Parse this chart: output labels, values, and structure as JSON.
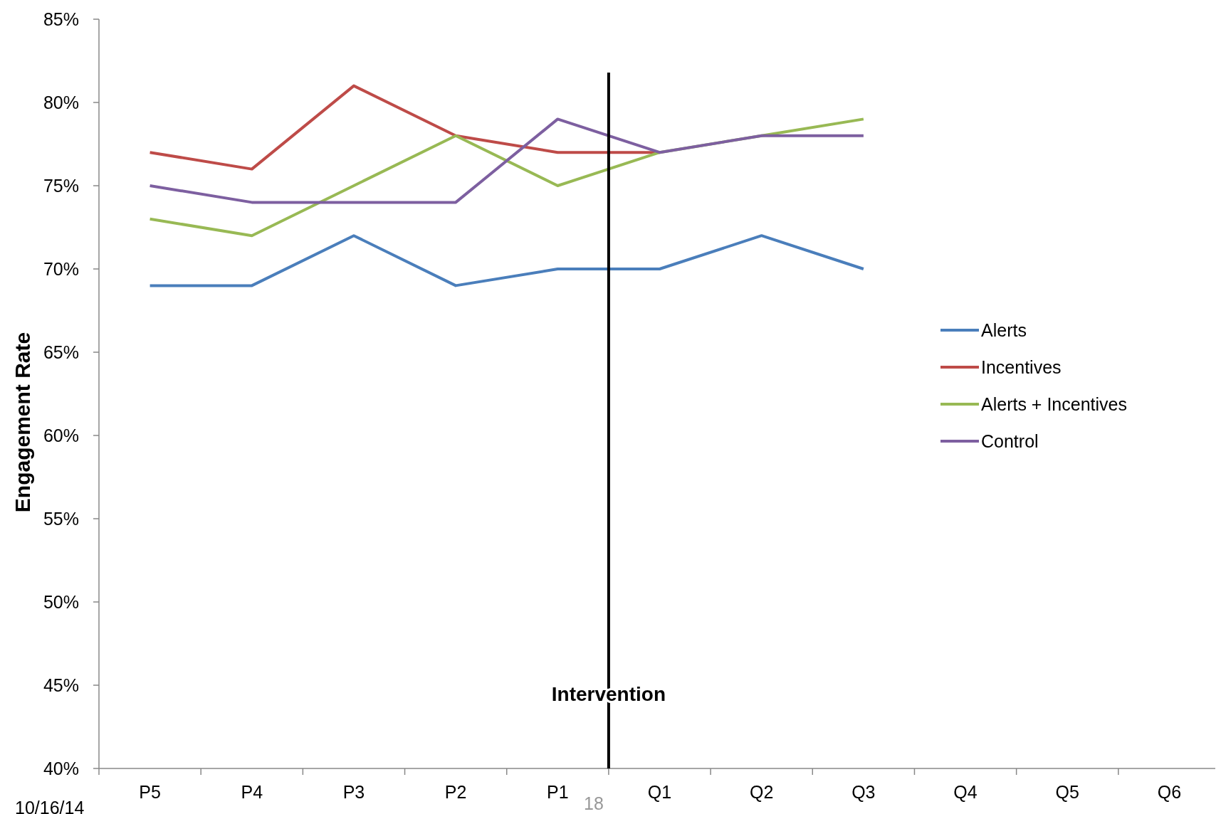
{
  "chart_data": {
    "type": "line",
    "ylabel": "Engagement Rate",
    "categories": [
      "P5",
      "P4",
      "P3",
      "P2",
      "P1",
      "Q1",
      "Q2",
      "Q3",
      "Q4",
      "Q5",
      "Q6"
    ],
    "series": [
      {
        "name": "Alerts",
        "color": "#4a7ebb",
        "values": [
          69,
          69,
          72,
          69,
          70,
          70,
          72,
          70,
          null,
          null,
          null
        ]
      },
      {
        "name": "Incentives",
        "color": "#be4b48",
        "values": [
          77,
          76,
          81,
          78,
          77,
          77,
          null,
          null,
          null,
          null,
          null
        ]
      },
      {
        "name": "Alerts + Incentives",
        "color": "#98b954",
        "values": [
          73,
          72,
          75,
          78,
          75,
          77,
          78,
          79,
          null,
          null,
          null
        ]
      },
      {
        "name": "Control",
        "color": "#7d5fa0",
        "values": [
          75,
          74,
          74,
          74,
          79,
          77,
          78,
          78,
          null,
          null,
          null
        ]
      }
    ],
    "ylim": [
      40,
      85
    ],
    "yticks": [
      {
        "value": 40,
        "label": "40%"
      },
      {
        "value": 45,
        "label": "45%"
      },
      {
        "value": 50,
        "label": "50%"
      },
      {
        "value": 55,
        "label": "55%"
      },
      {
        "value": 60,
        "label": "60%"
      },
      {
        "value": 65,
        "label": "65%"
      },
      {
        "value": 70,
        "label": "70%"
      },
      {
        "value": 75,
        "label": "75%"
      },
      {
        "value": 80,
        "label": "80%"
      },
      {
        "value": 85,
        "label": "85%"
      }
    ],
    "annotations": [
      "10/16/14",
      "18",
      "Intervention"
    ],
    "grid": false,
    "legend": "right",
    "marker": "none",
    "line_style": "solid"
  }
}
